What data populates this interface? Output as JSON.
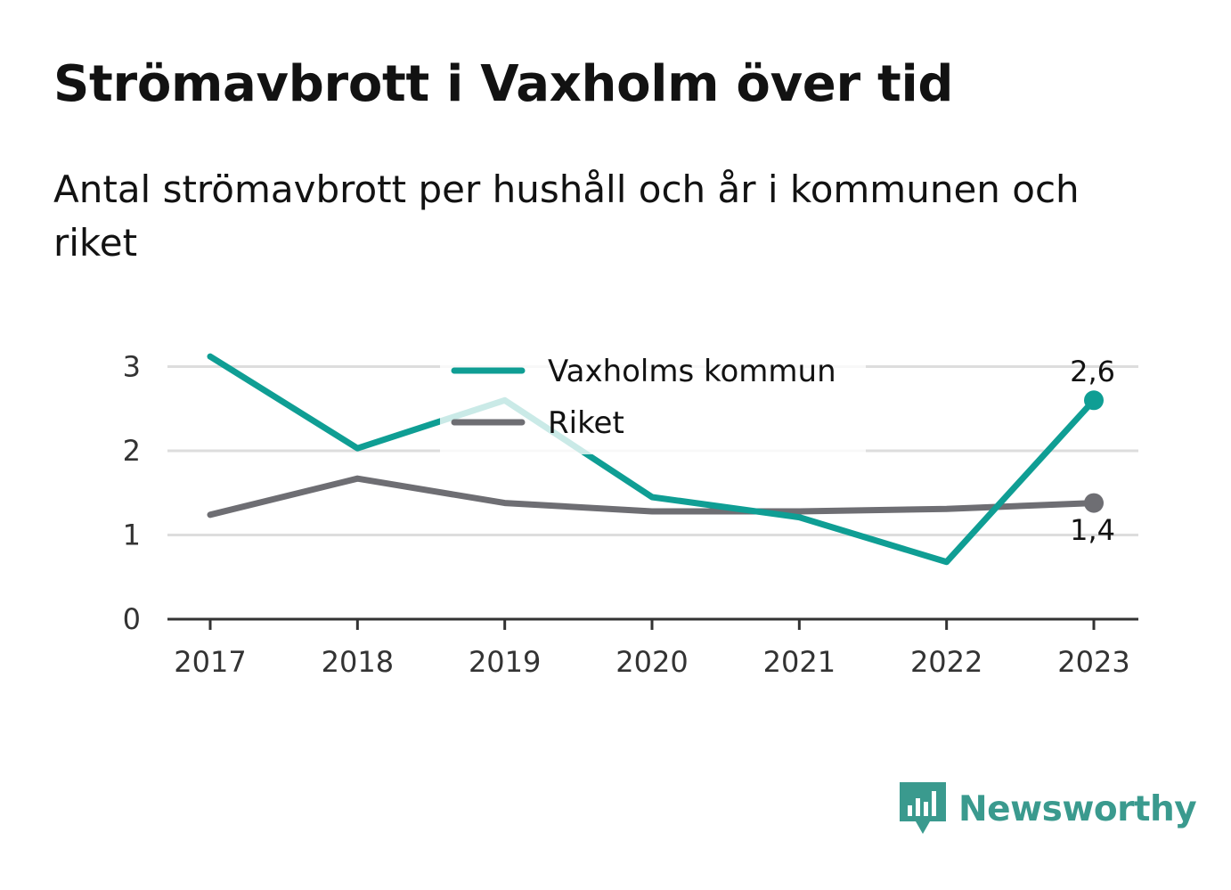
{
  "title": "Strömavbrott i Vaxholm över tid",
  "subtitle": "Antal strömavbrott per hushåll och år i kommunen och riket",
  "colors": {
    "kommun": "#0f9e94",
    "riket": "#6e6e73",
    "grid": "#dddddd",
    "axis": "#333333",
    "brand": "#3a9a8e"
  },
  "chart_data": {
    "type": "line",
    "x": [
      "2017",
      "2018",
      "2019",
      "2020",
      "2021",
      "2022",
      "2023"
    ],
    "y_ticks": [
      "0",
      "1",
      "2",
      "3"
    ],
    "ylim": [
      0,
      3
    ],
    "grid": true,
    "legend_position": "top-center",
    "series": [
      {
        "name": "Vaxholms kommun",
        "color": "#0f9e94",
        "values": [
          3.12,
          2.03,
          2.6,
          1.45,
          1.21,
          0.68,
          2.6
        ],
        "end_label": "2,6"
      },
      {
        "name": "Riket",
        "color": "#6e6e73",
        "values": [
          1.24,
          1.67,
          1.38,
          1.28,
          1.28,
          1.31,
          1.38
        ],
        "end_label": "1,4"
      }
    ]
  },
  "brand": {
    "name": "Newsworthy",
    "icon": "newsworthy-logo-icon"
  }
}
